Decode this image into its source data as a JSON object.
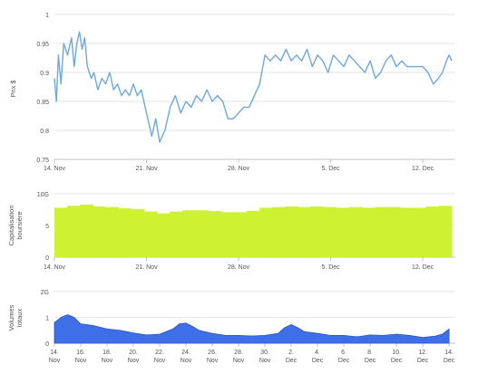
{
  "chart_data": [
    {
      "type": "line",
      "ylabel": "Prix $",
      "ylim": [
        0.75,
        1
      ],
      "y_ticks": [
        "0.75",
        "0.8",
        "0.85",
        "0.9",
        "0.95",
        "1"
      ],
      "x_ticks": [
        "14. Nov",
        "21. Nov",
        "28. Nov",
        "5. Dec",
        "12. Dec"
      ],
      "grid": true,
      "color": "#6fa8dc",
      "series": [
        {
          "points": [
            [
              0,
              0.89
            ],
            [
              0.15,
              0.85
            ],
            [
              0.3,
              0.93
            ],
            [
              0.5,
              0.88
            ],
            [
              0.7,
              0.95
            ],
            [
              1.0,
              0.93
            ],
            [
              1.3,
              0.96
            ],
            [
              1.5,
              0.91
            ],
            [
              1.7,
              0.95
            ],
            [
              1.9,
              0.97
            ],
            [
              2.1,
              0.94
            ],
            [
              2.3,
              0.96
            ],
            [
              2.5,
              0.91
            ],
            [
              2.8,
              0.89
            ],
            [
              3.0,
              0.9
            ],
            [
              3.3,
              0.87
            ],
            [
              3.6,
              0.89
            ],
            [
              3.9,
              0.88
            ],
            [
              4.2,
              0.9
            ],
            [
              4.5,
              0.87
            ],
            [
              4.8,
              0.88
            ],
            [
              5.1,
              0.86
            ],
            [
              5.4,
              0.87
            ],
            [
              5.7,
              0.86
            ],
            [
              6.0,
              0.88
            ],
            [
              6.3,
              0.86
            ],
            [
              6.6,
              0.87
            ],
            [
              7.0,
              0.83
            ],
            [
              7.4,
              0.79
            ],
            [
              7.7,
              0.82
            ],
            [
              8.0,
              0.78
            ],
            [
              8.4,
              0.8
            ],
            [
              8.8,
              0.84
            ],
            [
              9.2,
              0.86
            ],
            [
              9.6,
              0.83
            ],
            [
              10.0,
              0.85
            ],
            [
              10.4,
              0.84
            ],
            [
              10.8,
              0.86
            ],
            [
              11.2,
              0.85
            ],
            [
              11.6,
              0.87
            ],
            [
              12.0,
              0.85
            ],
            [
              12.4,
              0.86
            ],
            [
              12.8,
              0.85
            ],
            [
              13.2,
              0.82
            ],
            [
              13.6,
              0.82
            ],
            [
              14.0,
              0.83
            ],
            [
              14.4,
              0.84
            ],
            [
              14.8,
              0.84
            ],
            [
              15.2,
              0.86
            ],
            [
              15.6,
              0.88
            ],
            [
              16.0,
              0.93
            ],
            [
              16.4,
              0.92
            ],
            [
              16.8,
              0.93
            ],
            [
              17.2,
              0.92
            ],
            [
              17.6,
              0.94
            ],
            [
              18.0,
              0.92
            ],
            [
              18.4,
              0.93
            ],
            [
              18.8,
              0.92
            ],
            [
              19.2,
              0.94
            ],
            [
              19.6,
              0.91
            ],
            [
              20.0,
              0.93
            ],
            [
              20.4,
              0.92
            ],
            [
              20.8,
              0.9
            ],
            [
              21.2,
              0.93
            ],
            [
              21.6,
              0.92
            ],
            [
              22.0,
              0.91
            ],
            [
              22.4,
              0.93
            ],
            [
              22.8,
              0.92
            ],
            [
              23.2,
              0.91
            ],
            [
              23.6,
              0.9
            ],
            [
              24.0,
              0.92
            ],
            [
              24.4,
              0.89
            ],
            [
              24.8,
              0.9
            ],
            [
              25.2,
              0.92
            ],
            [
              25.6,
              0.93
            ],
            [
              26.0,
              0.91
            ],
            [
              26.4,
              0.92
            ],
            [
              26.8,
              0.91
            ],
            [
              27.2,
              0.91
            ],
            [
              27.6,
              0.91
            ],
            [
              28.0,
              0.91
            ],
            [
              28.4,
              0.9
            ],
            [
              28.8,
              0.88
            ],
            [
              29.2,
              0.89
            ],
            [
              29.5,
              0.9
            ],
            [
              29.8,
              0.92
            ],
            [
              30.0,
              0.93
            ],
            [
              30.2,
              0.92
            ]
          ]
        }
      ]
    },
    {
      "type": "bar",
      "ylabel": "Capitalisation boursière",
      "ylim": [
        0,
        10
      ],
      "y_ticks": [
        "0",
        "5",
        "10G"
      ],
      "x_ticks": [
        "14. Nov",
        "21. Nov",
        "28. Nov",
        "5. Dec",
        "12. Dec"
      ],
      "grid": true,
      "color": "#cdf231",
      "series": [
        {
          "points": [
            [
              0,
              7.8
            ],
            [
              1,
              8.1
            ],
            [
              2,
              8.3
            ],
            [
              3,
              8.0
            ],
            [
              4,
              7.9
            ],
            [
              5,
              7.7
            ],
            [
              6,
              7.6
            ],
            [
              7,
              7.2
            ],
            [
              8,
              6.9
            ],
            [
              9,
              7.2
            ],
            [
              10,
              7.4
            ],
            [
              11,
              7.4
            ],
            [
              12,
              7.3
            ],
            [
              13,
              7.1
            ],
            [
              14,
              7.1
            ],
            [
              15,
              7.3
            ],
            [
              16,
              7.8
            ],
            [
              17,
              7.9
            ],
            [
              18,
              8.0
            ],
            [
              19,
              7.9
            ],
            [
              20,
              8.0
            ],
            [
              21,
              7.9
            ],
            [
              22,
              7.8
            ],
            [
              23,
              7.9
            ],
            [
              24,
              7.8
            ],
            [
              25,
              7.9
            ],
            [
              26,
              7.9
            ],
            [
              27,
              7.8
            ],
            [
              28,
              7.8
            ],
            [
              29,
              8.0
            ],
            [
              30,
              8.1
            ]
          ]
        }
      ]
    },
    {
      "type": "area",
      "ylabel": "Volumes totaux",
      "ylim": [
        0,
        2
      ],
      "y_ticks": [
        "0",
        "1",
        "2G"
      ],
      "x_ticks": [
        "14. Nov",
        "16. Nov",
        "18. Nov",
        "20. Nov",
        "22. Nov",
        "24. Nov",
        "26. Nov",
        "28. Nov",
        "30. Nov",
        "2. Dec",
        "4. Dec",
        "6. Dec",
        "8. Dec",
        "10. Dec",
        "12. Dec",
        "14. Dec"
      ],
      "grid": true,
      "color": "#3f6fe8",
      "series": [
        {
          "points": [
            [
              0,
              0.8
            ],
            [
              0.5,
              1.0
            ],
            [
              1.0,
              1.1
            ],
            [
              1.5,
              1.0
            ],
            [
              2,
              0.75
            ],
            [
              2.5,
              0.72
            ],
            [
              3,
              0.68
            ],
            [
              4,
              0.55
            ],
            [
              5,
              0.5
            ],
            [
              6,
              0.4
            ],
            [
              7,
              0.32
            ],
            [
              8,
              0.35
            ],
            [
              9,
              0.55
            ],
            [
              9.5,
              0.75
            ],
            [
              10,
              0.78
            ],
            [
              10.5,
              0.65
            ],
            [
              11,
              0.5
            ],
            [
              12,
              0.38
            ],
            [
              13,
              0.3
            ],
            [
              14,
              0.3
            ],
            [
              15,
              0.28
            ],
            [
              16,
              0.3
            ],
            [
              17,
              0.38
            ],
            [
              17.5,
              0.6
            ],
            [
              18,
              0.72
            ],
            [
              18.5,
              0.6
            ],
            [
              19,
              0.45
            ],
            [
              20,
              0.38
            ],
            [
              21,
              0.3
            ],
            [
              22,
              0.3
            ],
            [
              23,
              0.25
            ],
            [
              24,
              0.32
            ],
            [
              25,
              0.3
            ],
            [
              26,
              0.35
            ],
            [
              27,
              0.3
            ],
            [
              28,
              0.22
            ],
            [
              29,
              0.28
            ],
            [
              29.5,
              0.35
            ],
            [
              30,
              0.55
            ]
          ]
        }
      ]
    }
  ]
}
